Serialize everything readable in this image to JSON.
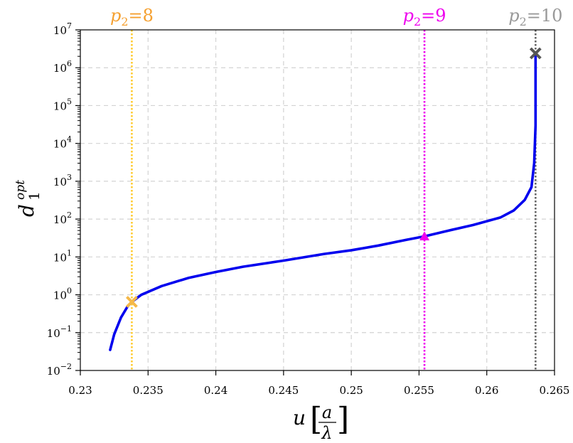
{
  "chart_data": {
    "type": "line",
    "xlabel": "u",
    "xlabel_fraction": {
      "numerator": "a",
      "denominator": "λ"
    },
    "ylabel": {
      "base": "d",
      "subscript": "1",
      "superscript": "opt"
    },
    "xlim": [
      0.23,
      0.265
    ],
    "ylim_exp": [
      -2,
      7
    ],
    "yscale": "log",
    "grid": true,
    "x_ticks": [
      {
        "value": 0.23,
        "label": "0.23"
      },
      {
        "value": 0.235,
        "label": "0.235"
      },
      {
        "value": 0.24,
        "label": "0.24"
      },
      {
        "value": 0.245,
        "label": "0.245"
      },
      {
        "value": 0.25,
        "label": "0.25"
      },
      {
        "value": 0.255,
        "label": "0.255"
      },
      {
        "value": 0.26,
        "label": "0.26"
      },
      {
        "value": 0.265,
        "label": "0.265"
      }
    ],
    "y_ticks": [
      {
        "exp": -2,
        "base": "10",
        "power": "−2"
      },
      {
        "exp": -1,
        "base": "10",
        "power": "−1"
      },
      {
        "exp": 0,
        "base": "10",
        "power": "0"
      },
      {
        "exp": 1,
        "base": "10",
        "power": "1"
      },
      {
        "exp": 2,
        "base": "10",
        "power": "2"
      },
      {
        "exp": 3,
        "base": "10",
        "power": "3"
      },
      {
        "exp": 4,
        "base": "10",
        "power": "4"
      },
      {
        "exp": 5,
        "base": "10",
        "power": "5"
      },
      {
        "exp": 6,
        "base": "10",
        "power": "6"
      },
      {
        "exp": 7,
        "base": "10",
        "power": "7"
      }
    ],
    "series": [
      {
        "color": "#0000ee",
        "x": [
          0.2322,
          0.2325,
          0.233,
          0.2335,
          0.2338,
          0.2345,
          0.236,
          0.238,
          0.24,
          0.242,
          0.245,
          0.248,
          0.25,
          0.252,
          0.254,
          0.2554,
          0.257,
          0.259,
          0.261,
          0.262,
          0.2628,
          0.2633,
          0.2635,
          0.2636,
          0.2636,
          0.2636
        ],
        "y": [
          0.035,
          0.09,
          0.25,
          0.5,
          0.65,
          1.0,
          1.7,
          2.8,
          4.0,
          5.5,
          8.0,
          12.0,
          15.0,
          20.0,
          28.0,
          35.0,
          48.0,
          70.0,
          110.0,
          170.0,
          320.0,
          700.0,
          3000.0,
          30000.0,
          500000.0,
          2400000.0
        ]
      }
    ],
    "vlines": [
      {
        "x": 0.2338,
        "label_text": "p",
        "label_sub": "2",
        "label_value": "=8",
        "color": "#f5a030",
        "line_color": "#ffcc33"
      },
      {
        "x": 0.2554,
        "label_text": "p",
        "label_sub": "2",
        "label_value": "=9",
        "color": "#ee00ee",
        "line_color": "#ee00ee"
      },
      {
        "x": 0.2636,
        "label_text": "p",
        "label_sub": "2",
        "label_value": "=10",
        "color": "#999999",
        "line_color": "#666666"
      }
    ],
    "markers": [
      {
        "x": 0.2338,
        "y": 0.65,
        "symbol": "x",
        "color": "#f5b848"
      },
      {
        "x": 0.2554,
        "y": 35,
        "symbol": "triangle",
        "color": "#ee00ee"
      },
      {
        "x": 0.2636,
        "y": 2400000,
        "symbol": "x",
        "color": "#555555"
      }
    ]
  }
}
